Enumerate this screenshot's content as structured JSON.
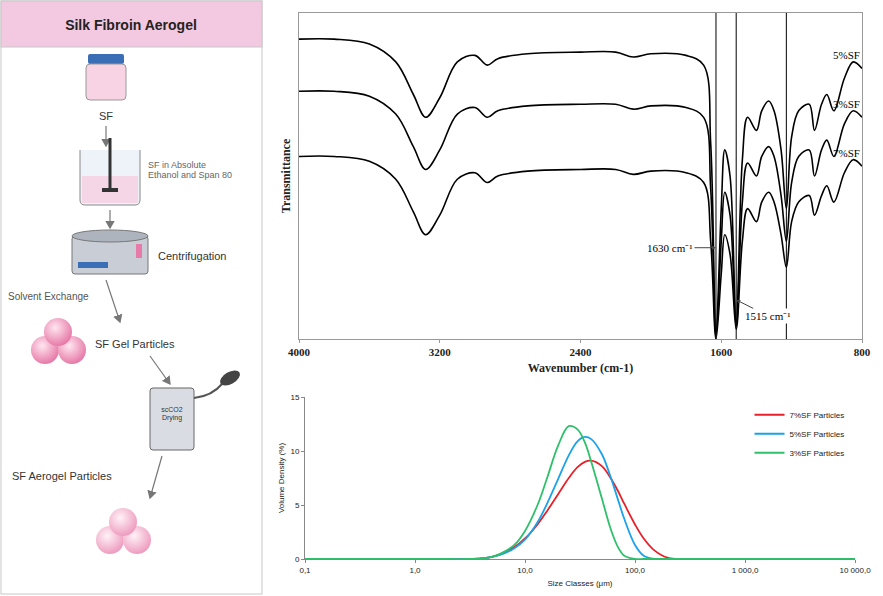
{
  "diagram": {
    "title": "Silk Fibroin Aerogel",
    "steps": [
      "SF",
      "SF in Absolute Ethanol and Span 80",
      "Centrifugation",
      "Solvent Exchange",
      "SF Gel Particles",
      "scCO2 Drying",
      "SF Aerogel Particles"
    ]
  },
  "chart_data": [
    {
      "type": "line",
      "x_label": "Wavenumber (cm-1)",
      "y_label": "Transmittance",
      "xlim": [
        4000,
        800
      ],
      "xticks": [
        4000,
        3200,
        2400,
        1600,
        800
      ],
      "ylim": [
        0,
        100
      ],
      "yticks": [],
      "tick_labels": "x",
      "grid": false,
      "x": [
        4000,
        3800,
        3600,
        3450,
        3350,
        3280,
        3200,
        3100,
        3000,
        2930,
        2870,
        2700,
        2400,
        2200,
        2100,
        2000,
        1800,
        1700,
        1660,
        1630,
        1600,
        1580,
        1550,
        1515,
        1480,
        1450,
        1400,
        1370,
        1330,
        1300,
        1260,
        1230,
        1200,
        1160,
        1100,
        1070,
        1030,
        1000,
        960,
        900,
        850,
        800
      ],
      "series": [
        {
          "name": "5%SF",
          "color": "#000000",
          "values": [
            92,
            92,
            90.5,
            85,
            75,
            68,
            74,
            85,
            87,
            84,
            86,
            87.5,
            88,
            88,
            86.5,
            87.5,
            87,
            84,
            60,
            2,
            40,
            58,
            50,
            5,
            55,
            68,
            64,
            70,
            73,
            70,
            58,
            40,
            62,
            70,
            72,
            64,
            72,
            75,
            70,
            80,
            85,
            83
          ]
        },
        {
          "name": "3%SF",
          "color": "#000000",
          "values": [
            76,
            76,
            74.5,
            69,
            59,
            52,
            58,
            69,
            71,
            68,
            70,
            71.5,
            72,
            72,
            70.5,
            71.5,
            71,
            68,
            46,
            1,
            30,
            45,
            38,
            4,
            42,
            54,
            50,
            56,
            59,
            56,
            44,
            30,
            48,
            56,
            58,
            50,
            58,
            61,
            56,
            66,
            70,
            68
          ]
        },
        {
          "name": "7%SF",
          "color": "#000000",
          "values": [
            56,
            56,
            54.5,
            49,
            39,
            32,
            38,
            49,
            51,
            48,
            50,
            51.5,
            52,
            52,
            50.5,
            51.5,
            51,
            48,
            30,
            0,
            20,
            32,
            26,
            3,
            30,
            40,
            36,
            42,
            45,
            42,
            32,
            22,
            36,
            42,
            44,
            38,
            44,
            47,
            42,
            51,
            55,
            53
          ]
        }
      ],
      "reference_lines": [
        1630,
        1515,
        1230
      ],
      "annotations": [
        {
          "text": "1630 cm⁻¹",
          "x": 1630,
          "y": 28
        },
        {
          "text": "1515 cm⁻¹",
          "x": 1515,
          "y": 12
        }
      ]
    },
    {
      "type": "line",
      "x_label": "Size Classes (μm)",
      "y_label": "Volume Density (%)",
      "log": "x",
      "xlim": [
        0.1,
        10000
      ],
      "xticks": [
        {
          "value": 0.1,
          "label": "0,1"
        },
        {
          "value": 1,
          "label": "1,0"
        },
        {
          "value": 10,
          "label": "10,0"
        },
        {
          "value": 100,
          "label": "100,0"
        },
        {
          "value": 1000,
          "label": "1 000,0"
        },
        {
          "value": 10000,
          "label": "10 000,0"
        }
      ],
      "ylim": [
        0,
        15
      ],
      "yticks": [
        0,
        5,
        10,
        15
      ],
      "grid": false,
      "legend": "top right",
      "x": [
        0.1,
        2,
        3,
        4,
        5,
        6,
        8,
        10,
        13,
        16,
        20,
        25,
        30,
        35,
        40,
        50,
        60,
        70,
        80,
        100,
        120,
        150,
        200,
        300,
        10000
      ],
      "series": [
        {
          "name": "7%SF Particles",
          "color": "#e8202a",
          "values": [
            0,
            0,
            0,
            0.05,
            0.2,
            0.45,
            1.1,
            1.9,
            3.2,
            4.5,
            6.0,
            7.5,
            8.5,
            9.0,
            9.1,
            8.6,
            7.5,
            6.3,
            5.1,
            3.2,
            1.9,
            0.8,
            0.1,
            0,
            0
          ]
        },
        {
          "name": "5%SF Particles",
          "color": "#1aa3e8",
          "values": [
            0,
            0,
            0,
            0.05,
            0.2,
            0.4,
            1.0,
            1.8,
            3.4,
            5.2,
            7.4,
            9.6,
            10.9,
            11.3,
            11.1,
            9.7,
            7.6,
            5.5,
            3.7,
            1.3,
            0.3,
            0,
            0,
            0,
            0
          ]
        },
        {
          "name": "3%SF Particles",
          "color": "#2ec06a",
          "values": [
            0,
            0,
            0,
            0.05,
            0.2,
            0.5,
            1.3,
            2.6,
            5.0,
            7.6,
            10.5,
            12.3,
            12.0,
            10.8,
            9.0,
            5.6,
            2.8,
            1.1,
            0.3,
            0,
            0,
            0,
            0,
            0,
            0
          ]
        }
      ]
    }
  ]
}
